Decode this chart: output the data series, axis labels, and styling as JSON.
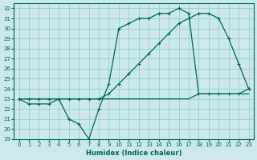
{
  "xlabel": "Humidex (Indice chaleur)",
  "xlim": [
    -0.5,
    23.5
  ],
  "ylim": [
    19,
    32.5
  ],
  "yticks": [
    19,
    20,
    21,
    22,
    23,
    24,
    25,
    26,
    27,
    28,
    29,
    30,
    31,
    32
  ],
  "xticks": [
    0,
    1,
    2,
    3,
    4,
    5,
    6,
    7,
    8,
    9,
    10,
    11,
    12,
    13,
    14,
    15,
    16,
    17,
    18,
    19,
    20,
    21,
    22,
    23
  ],
  "bg_color": "#cce8e8",
  "grid_color": "#88cccc",
  "line_color": "#006666",
  "line1_x": [
    0,
    1,
    2,
    3,
    4,
    5,
    6,
    7,
    8,
    9,
    10,
    11,
    12,
    13,
    14,
    15,
    16,
    17,
    18,
    19,
    20,
    21,
    22,
    23
  ],
  "line1_y": [
    23.0,
    22.5,
    22.5,
    22.5,
    23.0,
    21.0,
    20.5,
    19.0,
    22.0,
    24.5,
    30.0,
    30.5,
    31.0,
    31.0,
    31.5,
    31.5,
    32.0,
    31.5,
    23.5,
    23.5,
    23.5,
    23.5,
    23.5,
    24.0
  ],
  "line2_x": [
    0,
    1,
    2,
    3,
    4,
    5,
    6,
    7,
    8,
    9,
    10,
    11,
    12,
    13,
    14,
    15,
    16,
    17,
    18,
    19,
    20,
    21,
    22,
    23
  ],
  "line2_y": [
    23.0,
    23.0,
    23.0,
    23.0,
    23.0,
    23.0,
    23.0,
    23.0,
    23.0,
    23.5,
    24.5,
    25.5,
    26.5,
    27.5,
    28.5,
    29.5,
    30.5,
    31.0,
    31.5,
    31.5,
    31.0,
    29.0,
    26.5,
    24.0
  ],
  "line3_x": [
    0,
    1,
    2,
    3,
    4,
    5,
    6,
    7,
    8,
    9,
    10,
    11,
    12,
    13,
    14,
    15,
    16,
    17,
    18,
    19,
    20,
    21,
    22,
    23
  ],
  "line3_y": [
    23.0,
    23.0,
    23.0,
    23.0,
    23.0,
    23.0,
    23.0,
    23.0,
    23.0,
    23.0,
    23.0,
    23.0,
    23.0,
    23.0,
    23.0,
    23.0,
    23.0,
    23.0,
    23.5,
    23.5,
    23.5,
    23.5,
    23.5,
    23.5
  ]
}
